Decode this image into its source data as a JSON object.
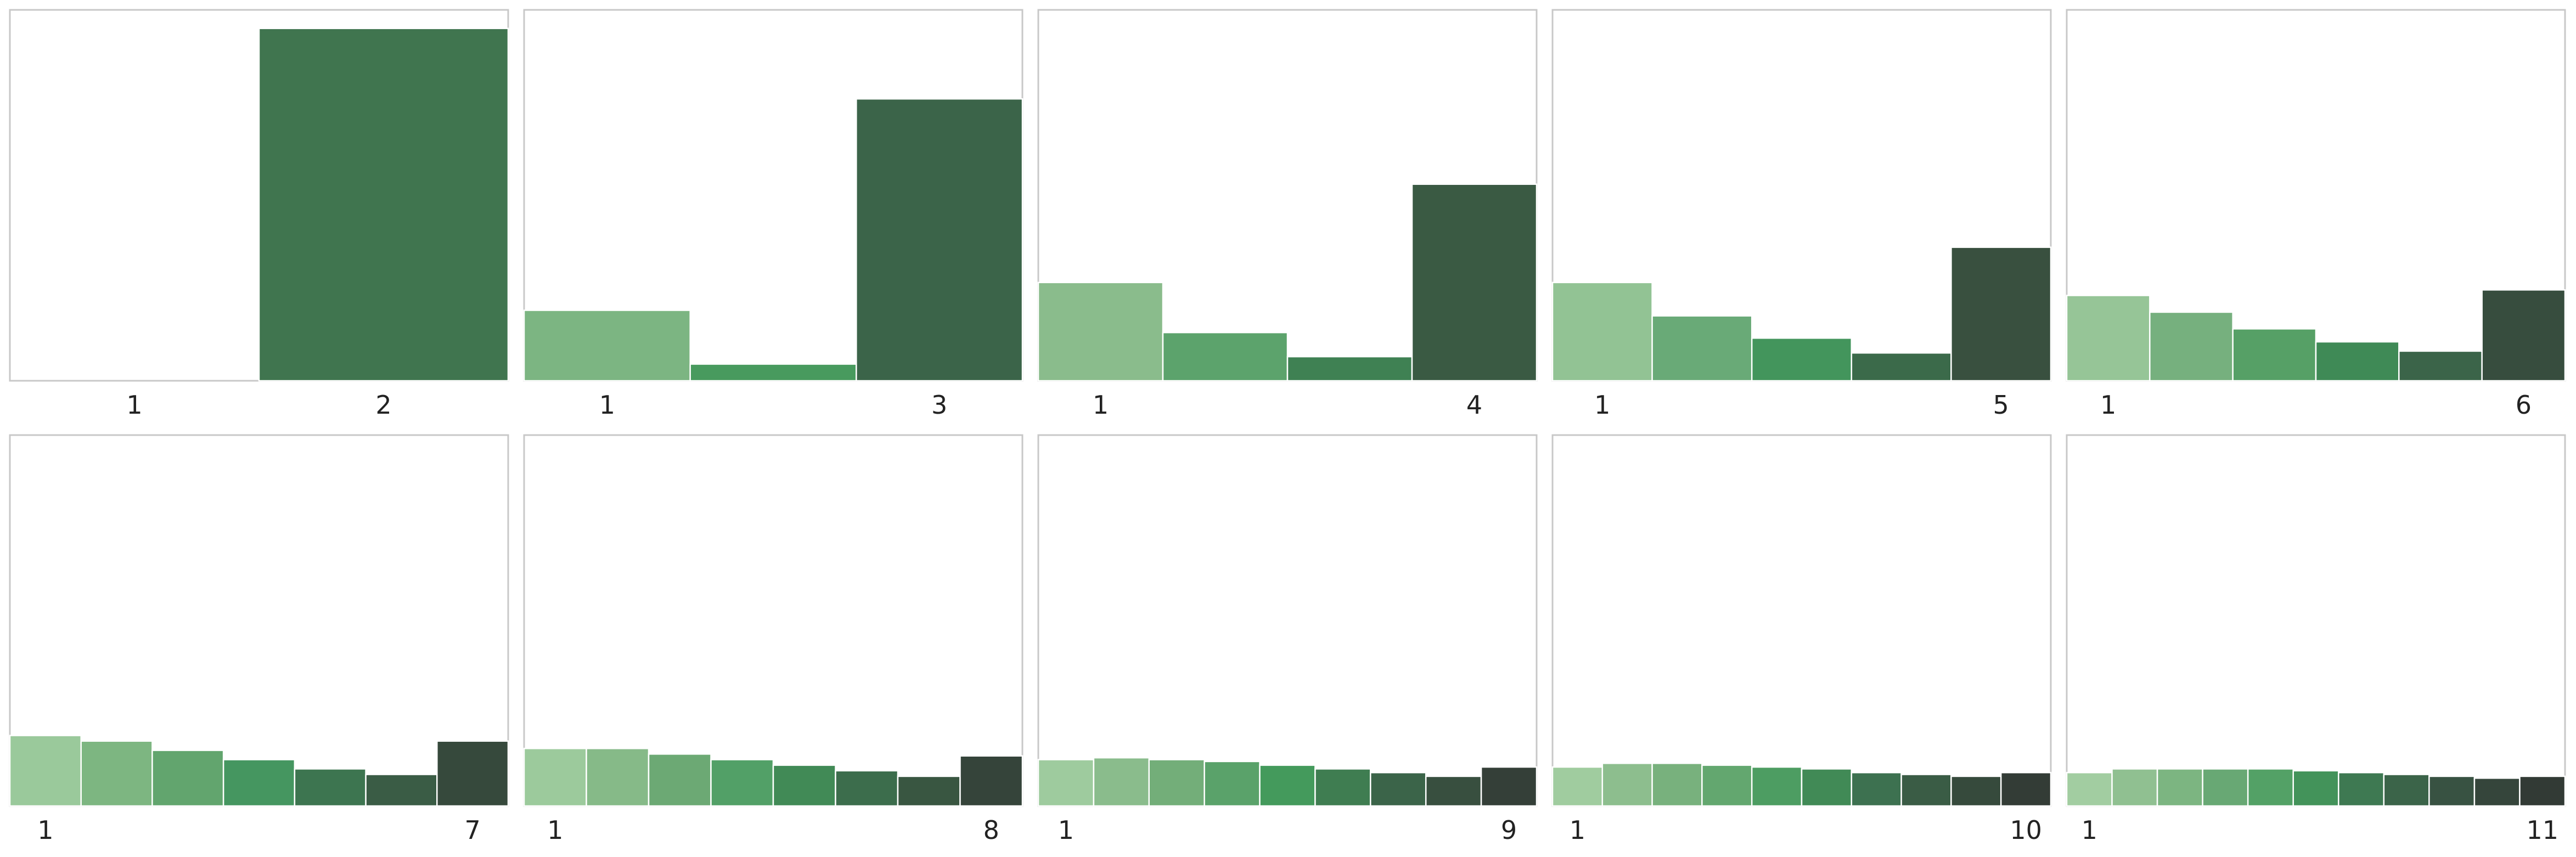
{
  "chart_data": [
    {
      "type": "bar",
      "categories": [
        "1",
        "2"
      ],
      "values": [
        0.0,
        0.95
      ],
      "tick_labels": [
        "1",
        "2"
      ],
      "ylim": [
        0,
        1
      ],
      "grid": false,
      "colors": [
        "#80b884",
        "#40754f"
      ]
    },
    {
      "type": "bar",
      "categories": [
        "1",
        "2",
        "3"
      ],
      "values": [
        0.19,
        0.045,
        0.76
      ],
      "tick_labels": [
        "1",
        "3"
      ],
      "ylim": [
        0,
        1
      ],
      "grid": false,
      "colors": [
        "#7cb582",
        "#489a5e",
        "#3b6449"
      ]
    },
    {
      "type": "bar",
      "categories": [
        "1",
        "2",
        "3",
        "4"
      ],
      "values": [
        0.265,
        0.13,
        0.065,
        0.53
      ],
      "tick_labels": [
        "1",
        "4"
      ],
      "ylim": [
        0,
        1
      ],
      "grid": false,
      "colors": [
        "#8abc8c",
        "#5ca36c",
        "#3f8153",
        "#3a5a43"
      ]
    },
    {
      "type": "bar",
      "categories": [
        "1",
        "2",
        "3",
        "4",
        "5"
      ],
      "values": [
        0.265,
        0.175,
        0.115,
        0.075,
        0.36
      ],
      "tick_labels": [
        "1",
        "5"
      ],
      "ylim": [
        0,
        1
      ],
      "grid": false,
      "colors": [
        "#92c394",
        "#69aa77",
        "#43955c",
        "#3b6a4a",
        "#39503f"
      ]
    },
    {
      "type": "bar",
      "categories": [
        "1",
        "2",
        "3",
        "4",
        "5",
        "6"
      ],
      "values": [
        0.23,
        0.185,
        0.14,
        0.105,
        0.08,
        0.245
      ],
      "tick_labels": [
        "1",
        "6"
      ],
      "ylim": [
        0,
        1
      ],
      "grid": false,
      "colors": [
        "#96c597",
        "#76b07e",
        "#56a066",
        "#3f8a56",
        "#3b6449",
        "#374d3e"
      ]
    },
    {
      "type": "bar",
      "categories": [
        "1",
        "2",
        "3",
        "4",
        "5",
        "6",
        "7"
      ],
      "values": [
        0.19,
        0.175,
        0.15,
        0.125,
        0.1,
        0.085,
        0.175
      ],
      "tick_labels": [
        "1",
        "7"
      ],
      "ylim": [
        0,
        1
      ],
      "grid": false,
      "colors": [
        "#9ac99b",
        "#7db681",
        "#62a56e",
        "#459660",
        "#3d7550",
        "#3a5c45",
        "#36493c"
      ]
    },
    {
      "type": "bar",
      "categories": [
        "1",
        "2",
        "3",
        "4",
        "5",
        "6",
        "7",
        "8"
      ],
      "values": [
        0.155,
        0.155,
        0.14,
        0.125,
        0.11,
        0.095,
        0.08,
        0.135
      ],
      "tick_labels": [
        "1",
        "8"
      ],
      "ylim": [
        0,
        1
      ],
      "grid": false,
      "colors": [
        "#9cca9c",
        "#86ba88",
        "#6ca974",
        "#52a067",
        "#418a56",
        "#3c6d4c",
        "#395641",
        "#35443a"
      ]
    },
    {
      "type": "bar",
      "categories": [
        "1",
        "2",
        "3",
        "4",
        "5",
        "6",
        "7",
        "8",
        "9"
      ],
      "values": [
        0.125,
        0.13,
        0.125,
        0.12,
        0.11,
        0.1,
        0.09,
        0.08,
        0.105
      ],
      "tick_labels": [
        "1",
        "9"
      ],
      "ylim": [
        0,
        1
      ],
      "grid": false,
      "colors": [
        "#9ecb9e",
        "#8abc8c",
        "#73ae79",
        "#5aa26a",
        "#449a5c",
        "#3f7d51",
        "#3b6449",
        "#384f3f",
        "#343f38"
      ]
    },
    {
      "type": "bar",
      "categories": [
        "1",
        "2",
        "3",
        "4",
        "5",
        "6",
        "7",
        "8",
        "9",
        "10"
      ],
      "values": [
        0.105,
        0.115,
        0.115,
        0.11,
        0.105,
        0.1,
        0.09,
        0.085,
        0.08,
        0.09
      ],
      "tick_labels": [
        "1",
        "10"
      ],
      "ylim": [
        0,
        1
      ],
      "grid": false,
      "colors": [
        "#a0cc9f",
        "#8dbe8e",
        "#78b17d",
        "#63a76f",
        "#4d9d62",
        "#418a56",
        "#3d7150",
        "#3a5c45",
        "#364a3c",
        "#333c36"
      ]
    },
    {
      "type": "bar",
      "categories": [
        "1",
        "2",
        "3",
        "4",
        "5",
        "6",
        "7",
        "8",
        "9",
        "10",
        "11"
      ],
      "values": [
        0.09,
        0.1,
        0.1,
        0.1,
        0.1,
        0.095,
        0.09,
        0.085,
        0.08,
        0.075,
        0.08
      ],
      "tick_labels": [
        "1",
        "11"
      ],
      "ylim": [
        0,
        1
      ],
      "grid": false,
      "colors": [
        "#a2cda1",
        "#90c091",
        "#7cb581",
        "#68a874",
        "#53a166",
        "#43935a",
        "#3e7952",
        "#3b6449",
        "#385242",
        "#35453b",
        "#323a35"
      ]
    }
  ]
}
